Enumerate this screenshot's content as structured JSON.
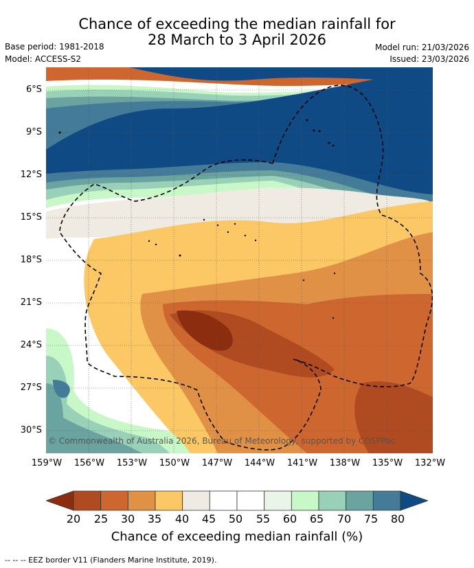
{
  "title_line1": "Chance of exceeding the median rainfall for",
  "title_line2": "28 March to 3 April 2026",
  "base_period": "Base period: 1981-2018",
  "model": "Model: ACCESS-S2",
  "model_run": "Model run: 21/03/2026",
  "issued": "Issued: 23/03/2026",
  "y_ticks": [
    "6°S",
    "9°S",
    "12°S",
    "15°S",
    "18°S",
    "21°S",
    "24°S",
    "27°S",
    "30°S"
  ],
  "x_ticks": [
    "159°W",
    "156°W",
    "153°W",
    "150°W",
    "147°W",
    "144°W",
    "141°W",
    "138°W",
    "135°W",
    "132°W"
  ],
  "copyright": "© Commonwealth of Australia 2026, Bureau of Meteorology, supported by COSPPac",
  "colorbar": {
    "labels": [
      "20",
      "25",
      "30",
      "35",
      "40",
      "45",
      "50",
      "55",
      "60",
      "65",
      "70",
      "75",
      "80"
    ],
    "title": "Chance of exceeding median rainfall (%)",
    "colors": [
      "#8c2d0f",
      "#b04a20",
      "#cd672f",
      "#e09146",
      "#fbc865",
      "#efebe3",
      "#ffffff",
      "#ffffff",
      "#e8f5e8",
      "#c8f7c8",
      "#99d0b8",
      "#6aa3a0",
      "#437b98",
      "#104a84"
    ]
  },
  "footnote": "--  --  -- EEZ border V11 (Flanders Marine Institute, 2019)."
}
